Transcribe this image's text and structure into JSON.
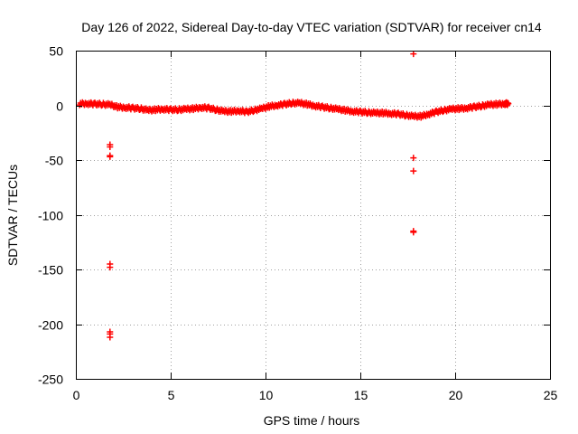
{
  "chart_data": {
    "type": "scatter",
    "title": "Day 126 of 2022, Sidereal Day-to-day VTEC variation (SDTVAR) for receiver cn14",
    "xlabel": "GPS time / hours",
    "ylabel": "SDTVAR / TECUs",
    "xlim": [
      0,
      25
    ],
    "ylim": [
      -250,
      50
    ],
    "xticks": [
      0,
      5,
      10,
      15,
      20,
      25
    ],
    "yticks": [
      -250,
      -200,
      -150,
      -100,
      -50,
      0,
      50
    ],
    "grid": true,
    "legend": "none",
    "marker": "+",
    "colors": {
      "series": "#ff0000",
      "grid": "#a0a0a0",
      "axis": "#000000"
    },
    "series": [
      {
        "name": "SDTVAR",
        "band": [
          [
            0.2,
            1.5
          ],
          [
            0.6,
            1.6
          ],
          [
            1.0,
            1.2
          ],
          [
            1.4,
            1.0
          ],
          [
            1.8,
            0.5
          ],
          [
            2.2,
            -1.5
          ],
          [
            2.6,
            -2.0
          ],
          [
            3.0,
            -2.5
          ],
          [
            3.4,
            -3.0
          ],
          [
            3.8,
            -4.5
          ],
          [
            4.2,
            -4.0
          ],
          [
            4.6,
            -3.5
          ],
          [
            5.0,
            -4.0
          ],
          [
            5.4,
            -4.0
          ],
          [
            5.8,
            -3.5
          ],
          [
            6.2,
            -3.0
          ],
          [
            6.6,
            -2.0
          ],
          [
            7.0,
            -2.5
          ],
          [
            7.4,
            -4.0
          ],
          [
            7.8,
            -5.5
          ],
          [
            8.2,
            -5.5
          ],
          [
            8.6,
            -5.0
          ],
          [
            9.0,
            -6.0
          ],
          [
            9.4,
            -4.5
          ],
          [
            9.8,
            -3.0
          ],
          [
            10.2,
            -1.0
          ],
          [
            10.6,
            0.0
          ],
          [
            11.0,
            1.0
          ],
          [
            11.4,
            2.0
          ],
          [
            11.8,
            2.0
          ],
          [
            12.2,
            1.0
          ],
          [
            12.6,
            -0.5
          ],
          [
            13.0,
            -1.5
          ],
          [
            13.4,
            -2.5
          ],
          [
            13.8,
            -3.5
          ],
          [
            14.2,
            -4.5
          ],
          [
            14.6,
            -5.5
          ],
          [
            15.0,
            -6.0
          ],
          [
            15.4,
            -6.5
          ],
          [
            15.8,
            -7.0
          ],
          [
            16.2,
            -7.0
          ],
          [
            16.6,
            -7.5
          ],
          [
            17.0,
            -8.0
          ],
          [
            17.4,
            -9.0
          ],
          [
            17.8,
            -10.0
          ],
          [
            18.2,
            -10.0
          ],
          [
            18.6,
            -8.0
          ],
          [
            19.0,
            -6.0
          ],
          [
            19.4,
            -4.5
          ],
          [
            19.8,
            -3.5
          ],
          [
            20.2,
            -3.0
          ],
          [
            20.6,
            -2.5
          ],
          [
            21.0,
            -1.5
          ],
          [
            21.4,
            -0.5
          ],
          [
            21.8,
            0.5
          ],
          [
            22.2,
            1.0
          ],
          [
            22.6,
            1.5
          ],
          [
            22.8,
            1.5
          ]
        ],
        "outliers": [
          [
            1.8,
            -36
          ],
          [
            1.8,
            -38
          ],
          [
            1.8,
            -46
          ],
          [
            1.8,
            -47
          ],
          [
            1.8,
            -145
          ],
          [
            1.8,
            -148
          ],
          [
            1.8,
            -207
          ],
          [
            1.8,
            -209
          ],
          [
            1.8,
            -212
          ],
          [
            17.8,
            47
          ],
          [
            17.8,
            -48
          ],
          [
            17.8,
            -60
          ],
          [
            17.8,
            -115
          ],
          [
            17.8,
            -116
          ]
        ]
      }
    ]
  }
}
